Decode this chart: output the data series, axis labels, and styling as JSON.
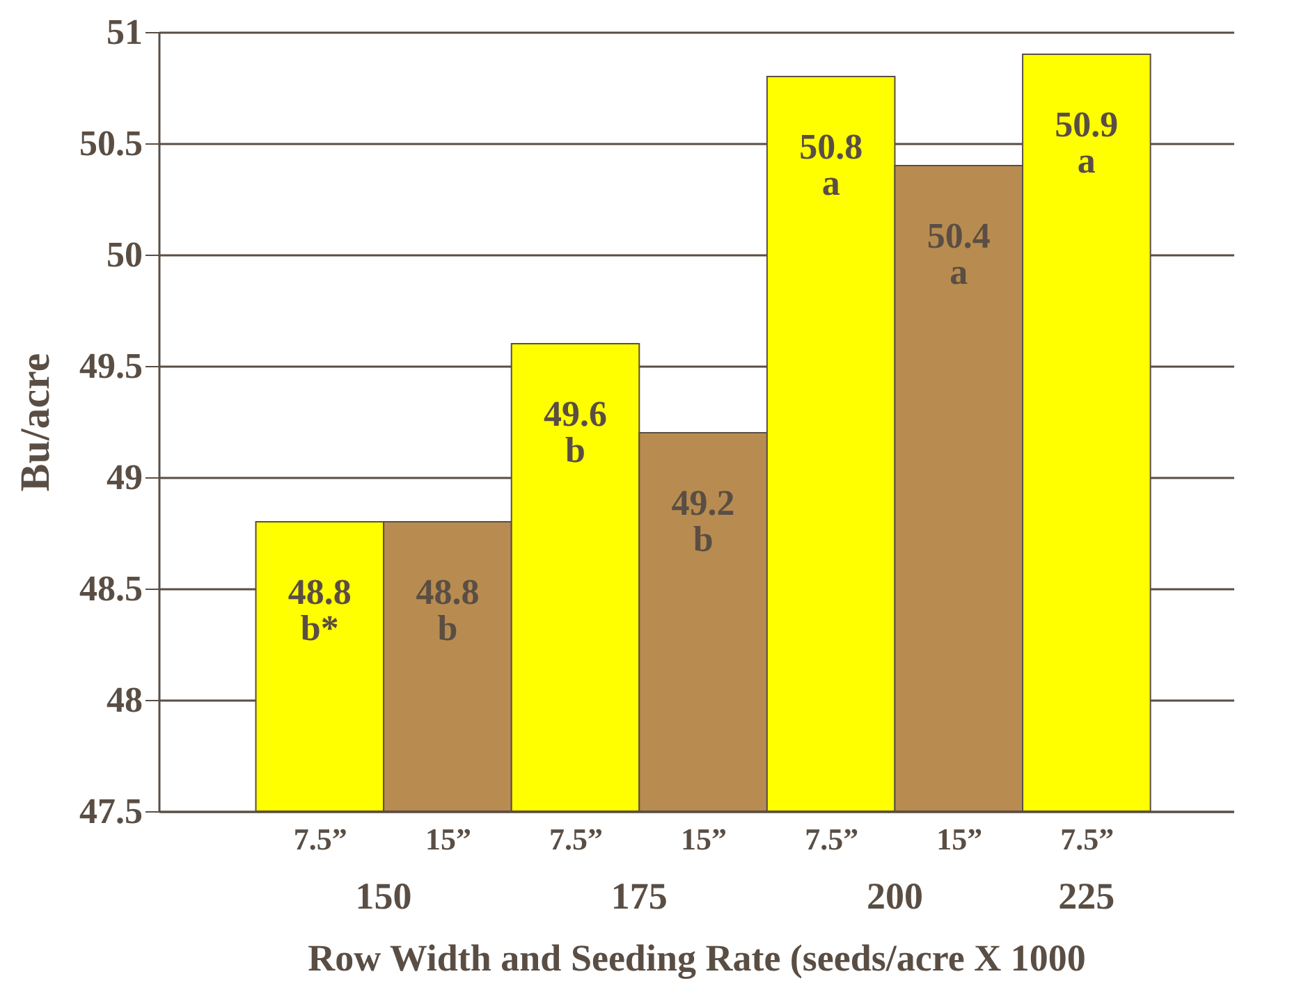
{
  "chart_data": {
    "type": "bar",
    "xlabel": "Row Width and Seeding Rate (seeds/acre X 1000",
    "ylabel": "Bu/acre",
    "categories": [
      "7.5”",
      "15”",
      "7.5”",
      "15”",
      "7.5”",
      "15”",
      "7.5”"
    ],
    "values": [
      48.8,
      48.8,
      49.6,
      49.2,
      50.8,
      50.4,
      50.9
    ],
    "colors": [
      "#ffff00",
      "#b88c50",
      "#ffff00",
      "#b88c50",
      "#ffff00",
      "#b88c50",
      "#ffff00"
    ],
    "value_labels": [
      "48.8\nb*",
      "48.8\nb",
      "49.6\nb",
      "49.2\nb",
      "50.8\na",
      "50.4\na",
      "50.9\na"
    ],
    "annotations": [
      "150",
      "175",
      "200",
      "225"
    ],
    "ylim": [
      47.5,
      51
    ],
    "yticks": [
      47.5,
      48,
      48.5,
      49,
      49.5,
      50,
      50.5,
      51
    ],
    "grid": "y"
  }
}
